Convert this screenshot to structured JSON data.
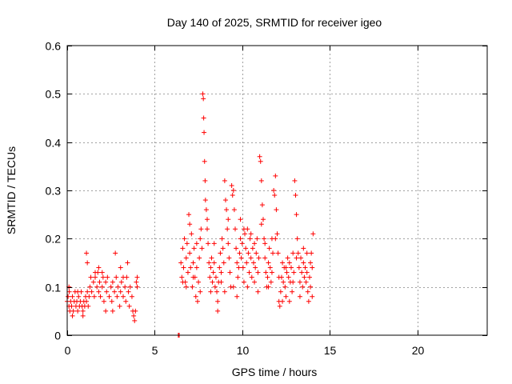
{
  "chart_data": {
    "type": "scatter",
    "title": "Day 140 of 2025, SRMTID for receiver igeo",
    "xlabel": "GPS time / hours",
    "ylabel": "SRMTID / TECUs",
    "xlim": [
      0,
      24
    ],
    "ylim": [
      0,
      0.6
    ],
    "xticks": [
      0,
      5,
      10,
      15,
      20
    ],
    "yticks": [
      0,
      0.1,
      0.2,
      0.3,
      0.4,
      0.5,
      0.6
    ],
    "xtick_labels": [
      "0",
      "5",
      "10",
      "15",
      "20"
    ],
    "ytick_labels": [
      "0",
      "0.1",
      "0.2",
      "0.3",
      "0.4",
      "0.5",
      "0.6"
    ],
    "grid": true,
    "marker": "+",
    "marker_color": "#ff0000",
    "series": [
      {
        "name": "SRMTID",
        "points": [
          [
            0.0,
            0.07
          ],
          [
            0.05,
            0.08
          ],
          [
            0.1,
            0.06
          ],
          [
            0.12,
            0.09
          ],
          [
            0.15,
            0.05
          ],
          [
            0.2,
            0.07
          ],
          [
            0.25,
            0.06
          ],
          [
            0.3,
            0.08
          ],
          [
            0.35,
            0.05
          ],
          [
            0.4,
            0.07
          ],
          [
            0.45,
            0.09
          ],
          [
            0.5,
            0.06
          ],
          [
            0.55,
            0.07
          ],
          [
            0.6,
            0.05
          ],
          [
            0.65,
            0.08
          ],
          [
            0.7,
            0.06
          ],
          [
            0.75,
            0.07
          ],
          [
            0.8,
            0.09
          ],
          [
            0.85,
            0.06
          ],
          [
            0.9,
            0.05
          ],
          [
            0.95,
            0.07
          ],
          [
            1.0,
            0.06
          ],
          [
            1.05,
            0.08
          ],
          [
            1.1,
            0.07
          ],
          [
            1.15,
            0.09
          ],
          [
            1.2,
            0.06
          ],
          [
            1.25,
            0.08
          ],
          [
            1.3,
            0.1
          ],
          [
            1.35,
            0.12
          ],
          [
            1.4,
            0.09
          ],
          [
            1.5,
            0.11
          ],
          [
            1.55,
            0.08
          ],
          [
            1.6,
            0.12
          ],
          [
            1.7,
            0.1
          ],
          [
            1.75,
            0.13
          ],
          [
            1.8,
            0.09
          ],
          [
            1.85,
            0.11
          ],
          [
            1.9,
            0.08
          ],
          [
            2.0,
            0.1
          ],
          [
            2.05,
            0.12
          ],
          [
            2.1,
            0.07
          ],
          [
            2.2,
            0.11
          ],
          [
            2.25,
            0.09
          ],
          [
            2.3,
            0.12
          ],
          [
            2.4,
            0.08
          ],
          [
            2.5,
            0.1
          ],
          [
            2.55,
            0.07
          ],
          [
            2.6,
            0.11
          ],
          [
            2.7,
            0.09
          ],
          [
            2.8,
            0.12
          ],
          [
            2.85,
            0.08
          ],
          [
            2.9,
            0.1
          ],
          [
            3.0,
            0.06
          ],
          [
            3.05,
            0.09
          ],
          [
            3.1,
            0.11
          ],
          [
            3.2,
            0.08
          ],
          [
            3.3,
            0.1
          ],
          [
            3.35,
            0.07
          ],
          [
            3.4,
            0.12
          ],
          [
            3.5,
            0.09
          ],
          [
            3.6,
            0.1
          ],
          [
            3.7,
            0.08
          ],
          [
            3.75,
            0.05
          ],
          [
            3.8,
            0.04
          ],
          [
            3.85,
            0.03
          ],
          [
            3.9,
            0.05
          ],
          [
            3.95,
            0.11
          ],
          [
            4.0,
            0.1
          ],
          [
            0.1,
            0.1
          ],
          [
            0.3,
            0.04
          ],
          [
            0.6,
            0.09
          ],
          [
            0.9,
            0.04
          ],
          [
            1.1,
            0.17
          ],
          [
            1.15,
            0.15
          ],
          [
            1.6,
            0.13
          ],
          [
            1.8,
            0.14
          ],
          [
            2.0,
            0.13
          ],
          [
            2.2,
            0.05
          ],
          [
            2.6,
            0.05
          ],
          [
            2.75,
            0.17
          ],
          [
            3.05,
            0.14
          ],
          [
            3.2,
            0.12
          ],
          [
            3.45,
            0.15
          ],
          [
            3.55,
            0.06
          ],
          [
            4.0,
            0.12
          ],
          [
            6.35,
            0.0
          ],
          [
            6.4,
            0.0
          ],
          [
            6.5,
            0.15
          ],
          [
            6.55,
            0.12
          ],
          [
            6.6,
            0.18
          ],
          [
            6.65,
            0.14
          ],
          [
            6.7,
            0.2
          ],
          [
            6.75,
            0.11
          ],
          [
            6.8,
            0.16
          ],
          [
            6.85,
            0.19
          ],
          [
            6.9,
            0.13
          ],
          [
            6.95,
            0.25
          ],
          [
            7.0,
            0.17
          ],
          [
            7.05,
            0.14
          ],
          [
            7.1,
            0.21
          ],
          [
            7.15,
            0.1
          ],
          [
            7.2,
            0.15
          ],
          [
            7.25,
            0.18
          ],
          [
            7.3,
            0.12
          ],
          [
            7.35,
            0.08
          ],
          [
            7.4,
            0.14
          ],
          [
            7.45,
            0.07
          ],
          [
            7.5,
            0.11
          ],
          [
            7.55,
            0.16
          ],
          [
            7.6,
            0.2
          ],
          [
            7.65,
            0.22
          ],
          [
            7.7,
            0.18
          ],
          [
            7.75,
            0.5
          ],
          [
            7.78,
            0.49
          ],
          [
            7.8,
            0.45
          ],
          [
            7.82,
            0.42
          ],
          [
            7.85,
            0.36
          ],
          [
            7.88,
            0.32
          ],
          [
            7.9,
            0.28
          ],
          [
            7.95,
            0.26
          ],
          [
            8.0,
            0.24
          ],
          [
            8.05,
            0.19
          ],
          [
            8.1,
            0.15
          ],
          [
            8.15,
            0.12
          ],
          [
            8.2,
            0.14
          ],
          [
            8.25,
            0.16
          ],
          [
            8.3,
            0.11
          ],
          [
            8.35,
            0.13
          ],
          [
            8.4,
            0.15
          ],
          [
            8.45,
            0.1
          ],
          [
            8.5,
            0.12
          ],
          [
            8.55,
            0.09
          ],
          [
            8.6,
            0.07
          ],
          [
            8.65,
            0.11
          ],
          [
            8.7,
            0.14
          ],
          [
            8.75,
            0.17
          ],
          [
            8.8,
            0.13
          ],
          [
            8.85,
            0.2
          ],
          [
            8.9,
            0.18
          ],
          [
            8.95,
            0.15
          ],
          [
            9.0,
            0.32
          ],
          [
            9.05,
            0.28
          ],
          [
            9.1,
            0.26
          ],
          [
            9.15,
            0.22
          ],
          [
            9.2,
            0.19
          ],
          [
            9.25,
            0.16
          ],
          [
            9.3,
            0.13
          ],
          [
            9.35,
            0.1
          ],
          [
            9.4,
            0.31
          ],
          [
            9.45,
            0.29
          ],
          [
            9.5,
            0.3
          ],
          [
            9.55,
            0.26
          ],
          [
            9.6,
            0.22
          ],
          [
            9.65,
            0.18
          ],
          [
            9.7,
            0.15
          ],
          [
            9.75,
            0.12
          ],
          [
            9.8,
            0.14
          ],
          [
            9.85,
            0.17
          ],
          [
            9.9,
            0.2
          ],
          [
            9.95,
            0.16
          ],
          [
            10.0,
            0.19
          ],
          [
            10.05,
            0.14
          ],
          [
            10.1,
            0.11
          ],
          [
            10.15,
            0.21
          ],
          [
            10.2,
            0.18
          ],
          [
            10.25,
            0.15
          ],
          [
            10.3,
            0.22
          ],
          [
            10.35,
            0.17
          ],
          [
            10.4,
            0.13
          ],
          [
            10.45,
            0.2
          ],
          [
            10.5,
            0.16
          ],
          [
            10.55,
            0.12
          ],
          [
            10.6,
            0.18
          ],
          [
            10.65,
            0.15
          ],
          [
            10.7,
            0.11
          ],
          [
            10.75,
            0.14
          ],
          [
            10.8,
            0.17
          ],
          [
            10.85,
            0.2
          ],
          [
            10.9,
            0.13
          ],
          [
            10.95,
            0.16
          ],
          [
            11.0,
            0.37
          ],
          [
            11.05,
            0.36
          ],
          [
            11.1,
            0.32
          ],
          [
            11.15,
            0.27
          ],
          [
            11.2,
            0.24
          ],
          [
            11.25,
            0.2
          ],
          [
            11.3,
            0.16
          ],
          [
            11.35,
            0.13
          ],
          [
            11.4,
            0.1
          ],
          [
            11.45,
            0.12
          ],
          [
            11.5,
            0.15
          ],
          [
            11.55,
            0.18
          ],
          [
            11.6,
            0.14
          ],
          [
            11.65,
            0.11
          ],
          [
            11.7,
            0.2
          ],
          [
            11.75,
            0.17
          ],
          [
            11.8,
            0.3
          ],
          [
            11.85,
            0.29
          ],
          [
            11.9,
            0.33
          ],
          [
            11.95,
            0.26
          ],
          [
            12.0,
            0.21
          ],
          [
            12.05,
            0.17
          ],
          [
            12.1,
            0.07
          ],
          [
            12.15,
            0.06
          ],
          [
            12.2,
            0.09
          ],
          [
            12.25,
            0.12
          ],
          [
            12.3,
            0.15
          ],
          [
            12.35,
            0.11
          ],
          [
            12.4,
            0.14
          ],
          [
            12.45,
            0.1
          ],
          [
            12.5,
            0.08
          ],
          [
            12.55,
            0.13
          ],
          [
            12.6,
            0.16
          ],
          [
            12.65,
            0.12
          ],
          [
            12.7,
            0.15
          ],
          [
            12.75,
            0.11
          ],
          [
            12.8,
            0.14
          ],
          [
            12.85,
            0.09
          ],
          [
            12.9,
            0.17
          ],
          [
            12.95,
            0.13
          ],
          [
            13.0,
            0.32
          ],
          [
            13.05,
            0.29
          ],
          [
            13.1,
            0.25
          ],
          [
            13.15,
            0.2
          ],
          [
            13.2,
            0.17
          ],
          [
            13.25,
            0.14
          ],
          [
            13.3,
            0.11
          ],
          [
            13.35,
            0.16
          ],
          [
            13.4,
            0.13
          ],
          [
            13.45,
            0.1
          ],
          [
            13.5,
            0.15
          ],
          [
            13.55,
            0.12
          ],
          [
            13.6,
            0.14
          ],
          [
            13.65,
            0.11
          ],
          [
            13.7,
            0.13
          ],
          [
            13.75,
            0.09
          ],
          [
            13.8,
            0.07
          ],
          [
            13.85,
            0.12
          ],
          [
            13.9,
            0.15
          ],
          [
            13.95,
            0.17
          ],
          [
            14.0,
            0.14
          ],
          [
            14.05,
            0.21
          ],
          [
            6.6,
            0.11
          ],
          [
            6.8,
            0.1
          ],
          [
            7.0,
            0.23
          ],
          [
            7.2,
            0.12
          ],
          [
            7.4,
            0.19
          ],
          [
            7.6,
            0.09
          ],
          [
            8.0,
            0.22
          ],
          [
            8.2,
            0.09
          ],
          [
            8.4,
            0.19
          ],
          [
            8.6,
            0.05
          ],
          [
            8.8,
            0.11
          ],
          [
            9.0,
            0.09
          ],
          [
            9.2,
            0.24
          ],
          [
            9.5,
            0.1
          ],
          [
            9.7,
            0.08
          ],
          [
            9.9,
            0.24
          ],
          [
            10.1,
            0.22
          ],
          [
            10.3,
            0.1
          ],
          [
            10.5,
            0.21
          ],
          [
            10.7,
            0.19
          ],
          [
            10.9,
            0.09
          ],
          [
            11.1,
            0.23
          ],
          [
            11.3,
            0.19
          ],
          [
            11.5,
            0.1
          ],
          [
            11.7,
            0.13
          ],
          [
            11.9,
            0.2
          ],
          [
            12.1,
            0.12
          ],
          [
            12.3,
            0.07
          ],
          [
            12.5,
            0.14
          ],
          [
            12.7,
            0.07
          ],
          [
            12.9,
            0.11
          ],
          [
            13.1,
            0.16
          ],
          [
            13.3,
            0.08
          ],
          [
            13.5,
            0.18
          ],
          [
            13.7,
            0.17
          ],
          [
            13.9,
            0.1
          ],
          [
            14.0,
            0.08
          ]
        ]
      }
    ]
  }
}
